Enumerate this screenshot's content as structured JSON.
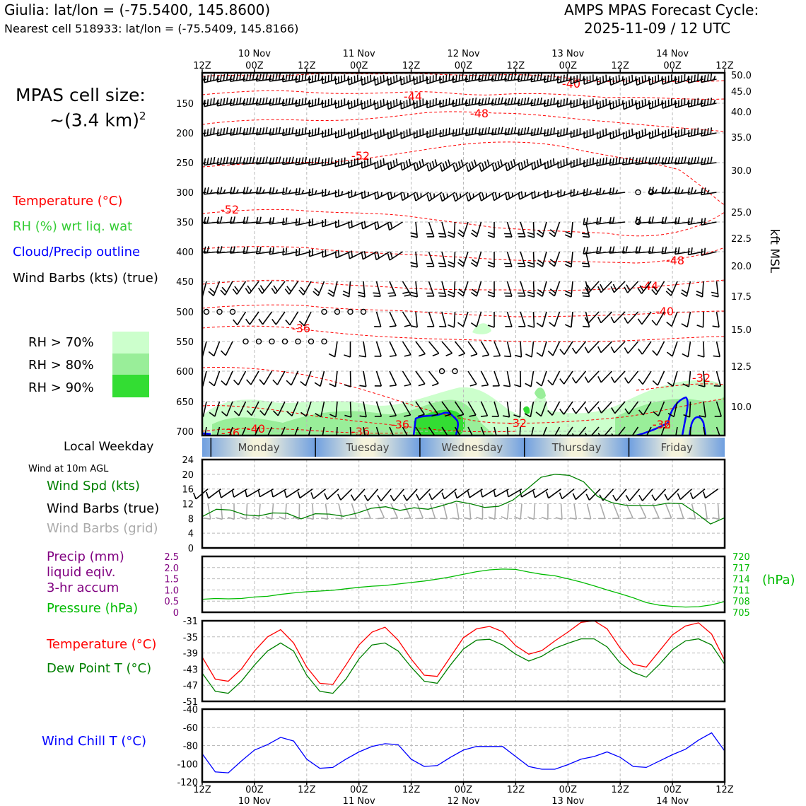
{
  "header": {
    "location": "Giulia: lat/lon = (-75.5400, 145.8600)",
    "nearest_cell": "Nearest cell 518933: lat/lon = (-75.5409, 145.8166)",
    "cycle_title": "AMPS MPAS Forecast Cycle:",
    "cycle_date": "2025-11-09 / 12 UTC"
  },
  "cell_size": {
    "line1": "MPAS cell size:",
    "line2": "~(3.4 km)",
    "superscript": "2"
  },
  "legend": {
    "temperature": "Temperature (°C)",
    "rh": "RH (%) wrt liq. wat",
    "cloud": "Cloud/Precip outline",
    "wind_barbs": "Wind Barbs (kts) (true)",
    "rh70": "RH > 70%",
    "rh80": "RH > 80%",
    "rh90": "RH > 90%",
    "local_weekday": "Local Weekday",
    "wind_10m": "Wind at 10m AGL",
    "wind_spd": "Wind Spd (kts)",
    "barbs_true": "Wind Barbs (true)",
    "barbs_grid": "Wind Barbs (grid)",
    "precip_1": "Precip (mm)",
    "precip_2": "liquid eqiv.",
    "precip_3": "3-hr accum",
    "pressure": "Pressure (hPa)",
    "temp2": "Temperature (°C)",
    "dewpoint": "Dew Point T (°C)",
    "windchill": "Wind Chill T (°C)"
  },
  "colors": {
    "temperature": "#ff0000",
    "rh_legend": "#33cc33",
    "cloud": "#0000ff",
    "wind_spd": "#008000",
    "barbs_grid": "#aaaaaa",
    "precip": "#800080",
    "pressure": "#00bb00",
    "dewpoint": "#008000",
    "windchill": "#0000ff",
    "rh70": "#ccffcc",
    "rh80": "#99ee99",
    "rh90": "#33dd33"
  },
  "time_axis": {
    "ticks": [
      "12Z",
      "00Z",
      "12Z",
      "00Z",
      "12Z",
      "00Z",
      "12Z",
      "00Z",
      "12Z",
      "00Z",
      "12Z"
    ],
    "dates": [
      "10 Nov",
      "11 Nov",
      "12 Nov",
      "13 Nov",
      "14 Nov"
    ],
    "weekdays": [
      "Monday",
      "Tuesday",
      "Wednesday",
      "Thursday",
      "Friday"
    ]
  },
  "chart_data": [
    {
      "type": "heatmap",
      "title": "",
      "ylabel": "kft MSL",
      "y_pressure_ticks": [
        "150",
        "200",
        "250",
        "300",
        "350",
        "400",
        "450",
        "500",
        "550",
        "600",
        "650",
        "700"
      ],
      "y_kft_ticks": [
        "50.0",
        "45.0",
        "40.0",
        "35.0",
        "30.0",
        "25.0",
        "22.5",
        "20.0",
        "17.5",
        "15.0",
        "12.5",
        "10.0"
      ],
      "temperature_contours": [
        "-40",
        "-44",
        "-48",
        "-52",
        "-52",
        "-48",
        "-44",
        "-40",
        "-36",
        "-32",
        "-36",
        "-40",
        "-36",
        "-36",
        "-32",
        "-32",
        "-36"
      ]
    },
    {
      "type": "line",
      "title": "Wind at 10m AGL",
      "ylim": [
        0,
        24
      ],
      "yticks": [
        "0",
        "4",
        "8",
        "12",
        "16",
        "20",
        "24"
      ],
      "series": [
        {
          "name": "Wind Spd (kts)",
          "values": [
            8.5,
            10.5,
            10.3,
            9,
            8.7,
            9.5,
            9.4,
            7.9,
            9.3,
            9.2,
            8.6,
            9.5,
            10.8,
            11.2,
            10.2,
            10.9,
            10.5,
            11.5,
            12.7,
            12,
            11,
            11.3,
            13,
            16,
            19.2,
            20,
            19.7,
            18,
            14,
            12.3,
            11.6,
            11.5,
            11.5,
            12.2,
            12,
            9.4,
            6.5,
            8.2
          ]
        }
      ]
    },
    {
      "type": "line",
      "title": "",
      "y_left_ticks": [
        "0",
        "0.5",
        "1.0",
        "1.5",
        "2.0",
        "2.5"
      ],
      "y_right_ticks": [
        "705",
        "708",
        "711",
        "714",
        "717",
        "720"
      ],
      "ylabel_right": "(hPa)",
      "series": [
        {
          "name": "Pressure (hPa)",
          "values": [
            708.5,
            708.7,
            708.6,
            708.7,
            709.1,
            709.3,
            709.8,
            710.2,
            710.5,
            710.7,
            710.9,
            711.3,
            711.7,
            712,
            712.2,
            712.6,
            713,
            713.4,
            713.9,
            714.5,
            715.2,
            715.9,
            716.4,
            716.6,
            716.5,
            715.8,
            715.2,
            714.8,
            714,
            713.1,
            712.1,
            711,
            710,
            708.9,
            707.6,
            706.9,
            706.6,
            706.4,
            706.5,
            707,
            707.9
          ]
        }
      ]
    },
    {
      "type": "line",
      "title": "",
      "ylim": [
        -51,
        -31
      ],
      "yticks": [
        "-31",
        "-35",
        "-39",
        "-43",
        "-47",
        "-51"
      ],
      "series": [
        {
          "name": "Temperature (°C)",
          "values": [
            -40,
            -45.5,
            -46,
            -43,
            -38.5,
            -35,
            -33.2,
            -36.5,
            -42.5,
            -46.5,
            -46.8,
            -42,
            -37,
            -33.8,
            -32.6,
            -35.8,
            -40.5,
            -44.5,
            -44.8,
            -40,
            -35.2,
            -33,
            -32.4,
            -33.7,
            -37.2,
            -39.3,
            -38.4,
            -36,
            -33.8,
            -31.4,
            -31,
            -33,
            -37.8,
            -41.8,
            -42.5,
            -38.5,
            -34.5,
            -32.3,
            -31.5,
            -34.3,
            -40.8
          ]
        },
        {
          "name": "Dew Point T (°C)",
          "values": [
            -44,
            -48.5,
            -49,
            -46,
            -42,
            -38.5,
            -36.5,
            -38.5,
            -44.5,
            -48.5,
            -49,
            -45.5,
            -40.5,
            -37,
            -36.5,
            -38.5,
            -42.5,
            -46,
            -46.5,
            -42,
            -38,
            -35.8,
            -35.6,
            -37,
            -39.3,
            -41,
            -39.8,
            -37.8,
            -36.6,
            -35.5,
            -35.5,
            -37.5,
            -41.5,
            -43.8,
            -45,
            -41.8,
            -38.2,
            -36,
            -35.5,
            -37,
            -41.8
          ]
        }
      ]
    },
    {
      "type": "line",
      "title": "",
      "ylim": [
        -120,
        -40
      ],
      "yticks": [
        "-40",
        "-60",
        "-80",
        "-100",
        "-120"
      ],
      "series": [
        {
          "name": "Wind Chill T (°C)",
          "values": [
            -89,
            -109,
            -110,
            -97,
            -85,
            -79,
            -71,
            -75,
            -95,
            -105,
            -104,
            -95,
            -87,
            -81,
            -78,
            -79,
            -95,
            -103,
            -102,
            -93,
            -85,
            -81,
            -81,
            -81,
            -92,
            -103,
            -106,
            -106,
            -101,
            -95,
            -92,
            -87,
            -93,
            -103,
            -104,
            -97,
            -90,
            -84,
            -74,
            -66,
            -86
          ]
        }
      ]
    }
  ]
}
